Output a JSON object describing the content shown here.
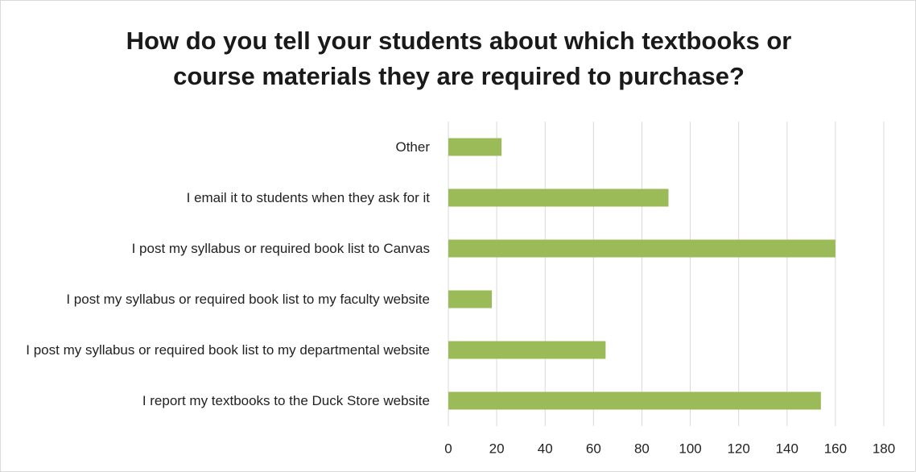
{
  "chart_data": {
    "type": "bar",
    "orientation": "horizontal",
    "title": "How do you tell your students about which textbooks or course materials they are required to purchase?",
    "categories": [
      "Other",
      "I email it to students when they ask for it",
      "I post my syllabus or required book list to Canvas",
      "I post my syllabus or required book list to my faculty website",
      "I post my syllabus or required book list to my departmental website",
      "I report my textbooks to the Duck Store website"
    ],
    "values": [
      22,
      91,
      160,
      18,
      65,
      154
    ],
    "color": "#9bbb59",
    "xlim": [
      0,
      180
    ],
    "xticks": [
      0,
      20,
      40,
      60,
      80,
      100,
      120,
      140,
      160,
      180
    ],
    "grid": true
  }
}
